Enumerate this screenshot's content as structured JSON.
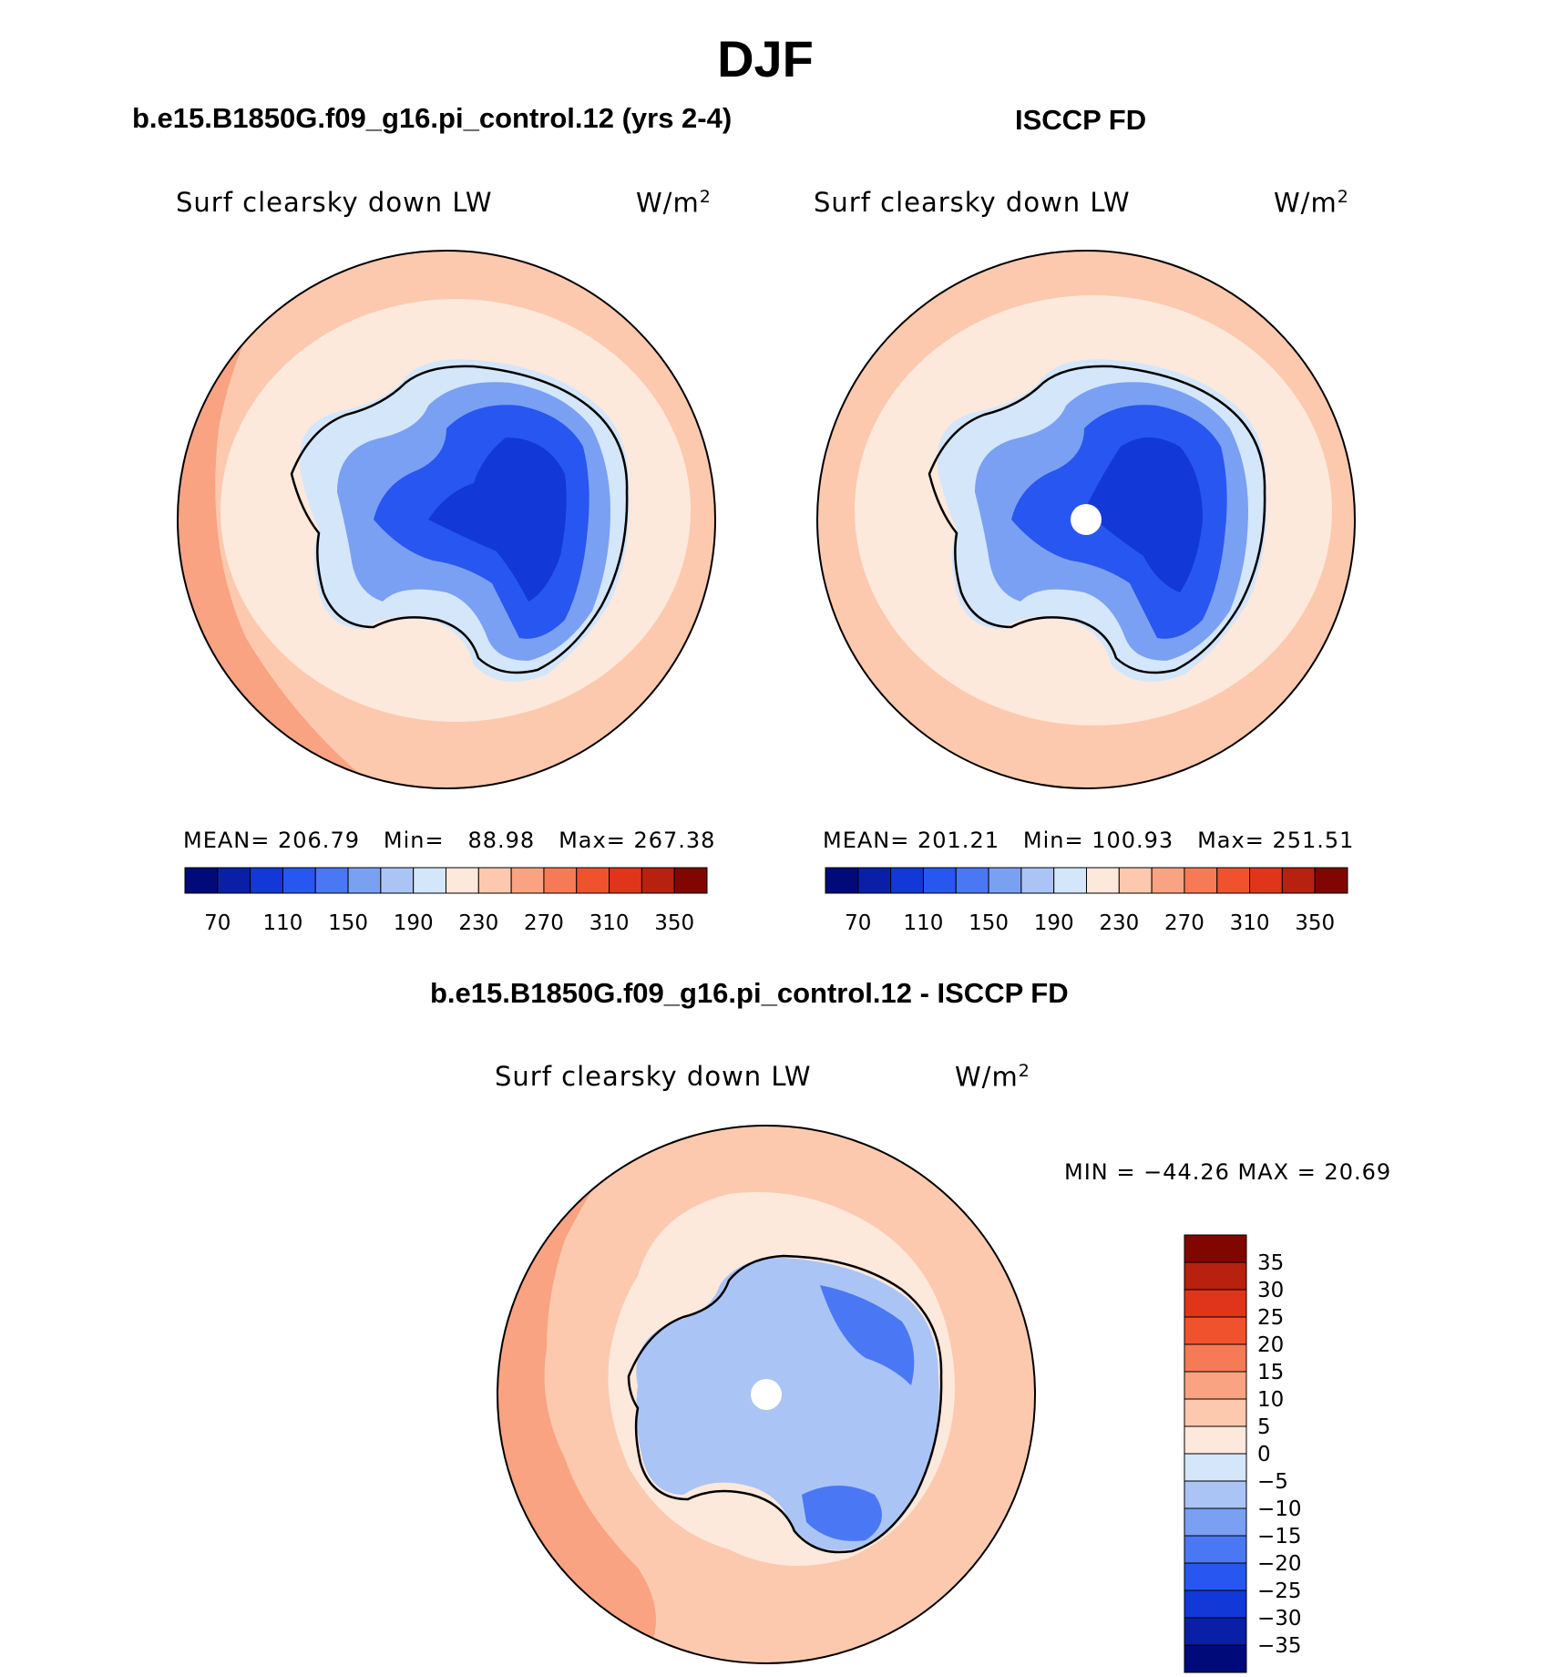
{
  "figure": {
    "title": "DJF",
    "panel_left_title": "b.e15.B1850G.f09_g16.pi_control.12 (yrs 2-4)",
    "panel_right_title": "ISCCP FD",
    "panel_bottom_title": "b.e15.B1850G.f09_g16.pi_control.12 - ISCCP FD"
  },
  "maps": [
    {
      "variable": "Surf clearsky down LW",
      "units_base": "W/m",
      "units_exp": "2",
      "mean_label": "MEAN=",
      "mean_value": "206.79",
      "min_label": "Min=",
      "min_value": "88.98",
      "max_label": "Max=",
      "max_value": "267.38"
    },
    {
      "variable": "Surf clearsky down LW",
      "units_base": "W/m",
      "units_exp": "2",
      "mean_label": "MEAN=",
      "mean_value": "201.21",
      "min_label": "Min=",
      "min_value": "100.93",
      "max_label": "Max=",
      "max_value": "251.51"
    },
    {
      "variable": "Surf clearsky down LW",
      "units_base": "W/m",
      "units_exp": "2",
      "minmax_text": "MIN = −44.26 MAX =   20.69"
    }
  ],
  "colorbars": {
    "absolute": {
      "colors": [
        "#000a78",
        "#0a1fa8",
        "#1238d8",
        "#2856f0",
        "#4a78f4",
        "#7aa0f4",
        "#aac4f6",
        "#d4e6fa",
        "#fde8dc",
        "#fcc9ae",
        "#f9a382",
        "#f57a55",
        "#f0522e",
        "#e0351a",
        "#b82010",
        "#820600"
      ],
      "tick_labels": [
        "70",
        "110",
        "150",
        "190",
        "230",
        "270",
        "310",
        "350"
      ]
    },
    "difference": {
      "colors": [
        "#000a78",
        "#0a1fa8",
        "#1238d8",
        "#2856f0",
        "#4a78f4",
        "#7aa0f4",
        "#aac4f6",
        "#d4e6fa",
        "#fde8dc",
        "#fcc9ae",
        "#f9a382",
        "#f57a55",
        "#f0522e",
        "#e0351a",
        "#b82010",
        "#820600"
      ],
      "tick_labels": [
        "−35",
        "−30",
        "−25",
        "−20",
        "−15",
        "−10",
        "−5",
        "0",
        "5",
        "10",
        "15",
        "20",
        "25",
        "30",
        "35"
      ]
    }
  },
  "palette": {
    "ocean_far": "#fcc9ae",
    "ocean_mid": "#fde8dc",
    "ocean_warm": "#f9a382",
    "ice_edge": "#d4e6fa",
    "ice_mid": "#7aa0f4",
    "ice_inner": "#2856f0",
    "ice_core": "#1238d8",
    "diff_neg": "#aac4f6",
    "diff_strong_neg": "#4a78f4"
  }
}
